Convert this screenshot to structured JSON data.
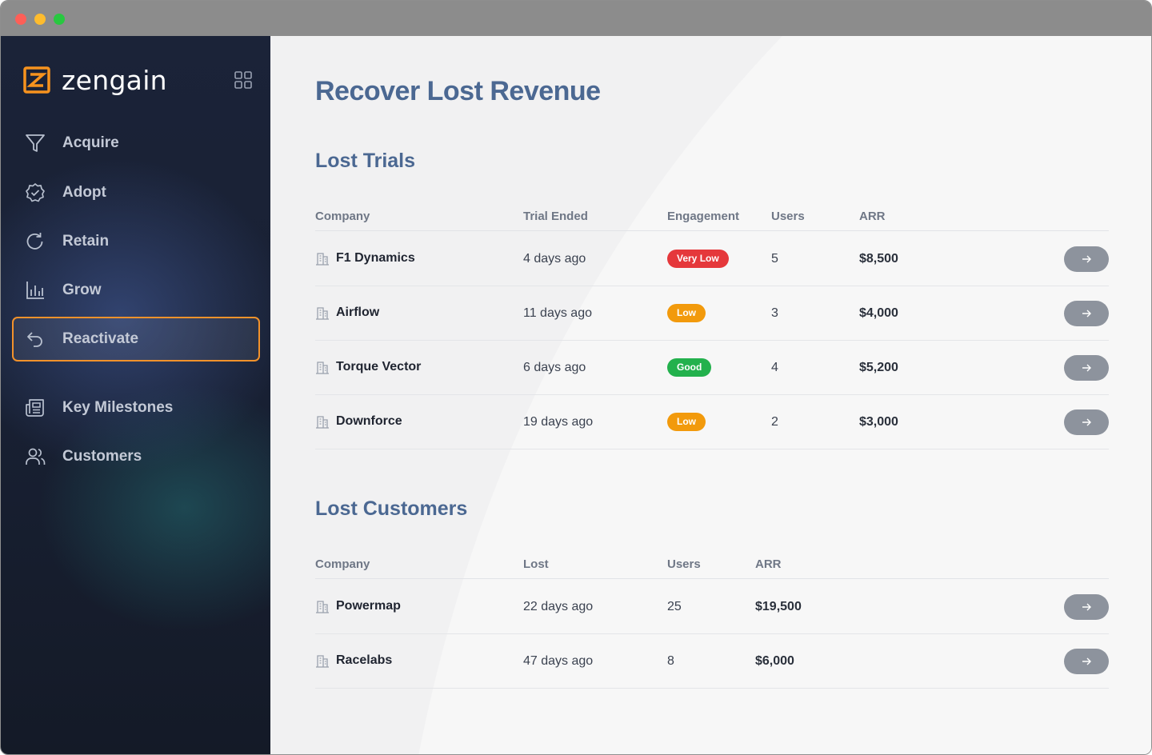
{
  "app": {
    "brand": "zengain"
  },
  "sidebar": {
    "items": [
      {
        "label": "Acquire",
        "icon": "filter-icon",
        "active": false
      },
      {
        "label": "Adopt",
        "icon": "badge-check-icon",
        "active": false
      },
      {
        "label": "Retain",
        "icon": "refresh-icon",
        "active": false
      },
      {
        "label": "Grow",
        "icon": "bar-chart-icon",
        "active": false
      },
      {
        "label": "Reactivate",
        "icon": "undo-arrow-icon",
        "active": true
      },
      {
        "label": "Key Milestones",
        "icon": "newspaper-icon",
        "active": false
      },
      {
        "label": "Customers",
        "icon": "users-icon",
        "active": false
      }
    ]
  },
  "main": {
    "title": "Recover Lost Revenue",
    "lost_trials": {
      "title": "Lost Trials",
      "headers": {
        "company": "Company",
        "trial_ended": "Trial Ended",
        "engagement": "Engagement",
        "users": "Users",
        "arr": "ARR"
      },
      "rows": [
        {
          "company": "F1 Dynamics",
          "trial_ended": "4 days ago",
          "engagement": "Very Low",
          "engagement_color": "#e5383b",
          "users": "5",
          "arr": "$8,500"
        },
        {
          "company": "Airflow",
          "trial_ended": "11 days ago",
          "engagement": "Low",
          "engagement_color": "#f29a0c",
          "users": "3",
          "arr": "$4,000"
        },
        {
          "company": "Torque Vector",
          "trial_ended": "6 days ago",
          "engagement": "Good",
          "engagement_color": "#23b14d",
          "users": "4",
          "arr": "$5,200"
        },
        {
          "company": "Downforce",
          "trial_ended": "19 days ago",
          "engagement": "Low",
          "engagement_color": "#f29a0c",
          "users": "2",
          "arr": "$3,000"
        }
      ]
    },
    "lost_customers": {
      "title": "Lost Customers",
      "headers": {
        "company": "Company",
        "lost": "Lost",
        "users": "Users",
        "arr": "ARR"
      },
      "rows": [
        {
          "company": "Powermap",
          "lost": "22 days ago",
          "users": "25",
          "arr": "$19,500"
        },
        {
          "company": "Racelabs",
          "lost": "47 days ago",
          "users": "8",
          "arr": "$6,000"
        }
      ]
    }
  },
  "colors": {
    "accent": "#f2922b",
    "heading": "#4b6892",
    "button": "#8d939d"
  }
}
